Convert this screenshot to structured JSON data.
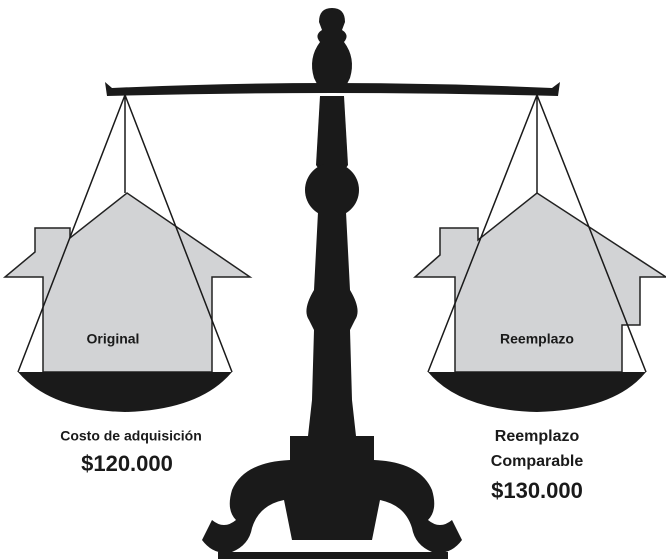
{
  "left": {
    "label": "Original",
    "caption": "Costo de adquisición",
    "amount": "$120.000"
  },
  "right": {
    "label": "Reemplazo",
    "caption_lines": [
      "Reemplazo",
      "Comparable"
    ],
    "amount": "$130.000"
  }
}
